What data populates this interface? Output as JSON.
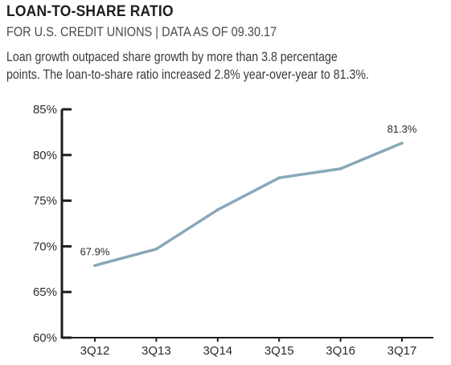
{
  "header": {
    "title": "LOAN-TO-SHARE RATIO",
    "subtitle": "FOR U.S. CREDIT UNIONS | DATA AS OF 09.30.17",
    "description_line1": "Loan growth outpaced share growth by more than 3.8 percentage",
    "description_line2": "points. The loan-to-share ratio increased 2.8% year-over-year to 81.3%."
  },
  "chart_data": {
    "type": "line",
    "categories": [
      "3Q12",
      "3Q13",
      "3Q14",
      "3Q15",
      "3Q16",
      "3Q17"
    ],
    "series": [
      {
        "values": [
          67.9,
          69.7,
          74.0,
          77.5,
          78.5,
          81.3
        ]
      }
    ],
    "data_labels": [
      {
        "index": 0,
        "text": "67.9%"
      },
      {
        "index": 5,
        "text": "81.3%"
      }
    ],
    "ylim": [
      60,
      85
    ],
    "yticks": [
      60,
      65,
      70,
      75,
      80,
      85
    ],
    "ytick_labels": [
      "60%",
      "65%",
      "70%",
      "75%",
      "80%",
      "85%"
    ],
    "xlabel": "",
    "ylabel": "",
    "grid": false,
    "line_color": "#89a8b8",
    "axis_color": "#1e1e1e"
  }
}
